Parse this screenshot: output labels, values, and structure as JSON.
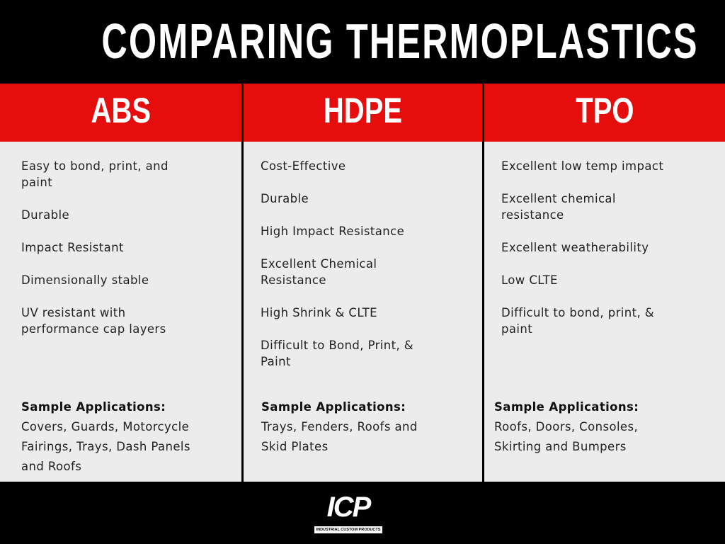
{
  "title": "COMPARING THERMOPLASTICS",
  "columns": [
    {
      "header": "ABS",
      "properties": [
        "Easy to bond, print, and paint",
        "Durable",
        "Impact Resistant",
        "Dimensionally stable",
        "UV resistant with performance cap layers"
      ],
      "applications_label": "Sample Applications:",
      "applications": "Covers, Guards, Motorcycle Fairings, Trays, Dash Panels and Roofs"
    },
    {
      "header": "HDPE",
      "properties": [
        "Cost-Effective",
        "Durable",
        "High Impact Resistance",
        "Excellent Chemical Resistance",
        "High Shrink & CLTE",
        "Difficult to Bond, Print, & Paint"
      ],
      "applications_label": "Sample Applications:",
      "applications": "Trays, Fenders, Roofs and Skid Plates"
    },
    {
      "header": "TPO",
      "properties": [
        "Excellent low temp impact",
        "Excellent chemical resistance",
        "Excellent weatherability",
        "Low CLTE",
        "Difficult to bond, print, & paint"
      ],
      "applications_label": "Sample Applications:",
      "applications": "Roofs, Doors, Consoles, Skirting and Bumpers"
    }
  ],
  "footer": {
    "logo": "ICP",
    "tagline": "INDUSTRIAL CUSTOM PRODUCTS"
  }
}
